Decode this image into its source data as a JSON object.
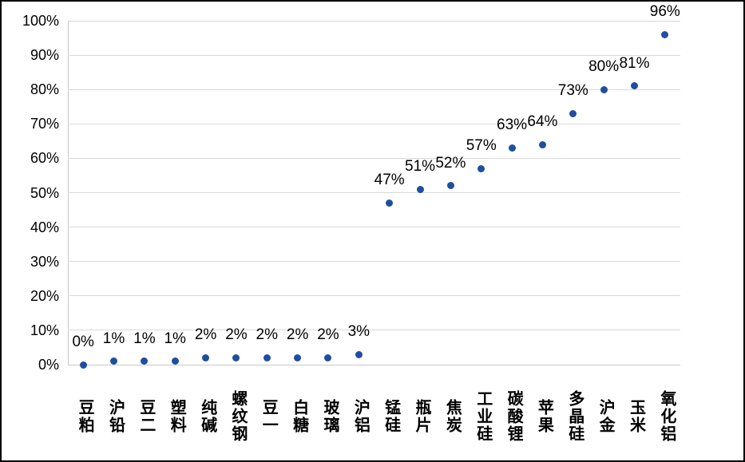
{
  "chart_data": {
    "type": "scatter",
    "title": "",
    "xlabel": "",
    "ylabel": "",
    "categories": [
      "豆粕",
      "沪铅",
      "豆二",
      "塑料",
      "纯碱",
      "螺纹钢",
      "豆一",
      "白糖",
      "玻璃",
      "沪铝",
      "锰硅",
      "瓶片",
      "焦炭",
      "工业硅",
      "碳酸锂",
      "苹果",
      "多晶硅",
      "沪金",
      "玉米",
      "氧化铝"
    ],
    "values": [
      0,
      1,
      1,
      1,
      2,
      2,
      2,
      2,
      2,
      3,
      47,
      51,
      52,
      57,
      63,
      64,
      73,
      80,
      81,
      96
    ],
    "data_labels": [
      "0%",
      "1%",
      "1%",
      "1%",
      "2%",
      "2%",
      "2%",
      "2%",
      "2%",
      "3%",
      "47%",
      "51%",
      "52%",
      "57%",
      "63%",
      "64%",
      "73%",
      "80%",
      "81%",
      "96%"
    ],
    "y_ticks": [
      "0%",
      "10%",
      "20%",
      "30%",
      "40%",
      "50%",
      "60%",
      "70%",
      "80%",
      "90%",
      "100%"
    ],
    "ylim": [
      0,
      100
    ],
    "grid": true,
    "legend": "none",
    "marker_color": "#1f4e9e",
    "gridline_color": "#d9d9d9",
    "axis_color": "#c9c9c9",
    "text_color": "#000000"
  }
}
